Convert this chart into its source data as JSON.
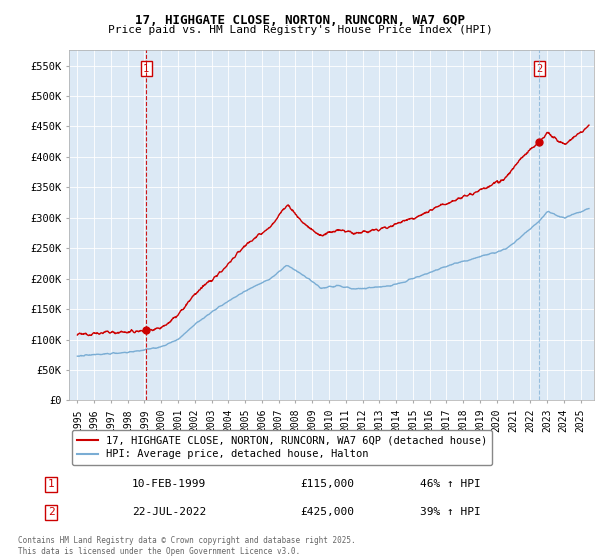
{
  "title1": "17, HIGHGATE CLOSE, NORTON, RUNCORN, WA7 6QP",
  "title2": "Price paid vs. HM Land Registry's House Price Index (HPI)",
  "ylabel_ticks": [
    "£0",
    "£50K",
    "£100K",
    "£150K",
    "£200K",
    "£250K",
    "£300K",
    "£350K",
    "£400K",
    "£450K",
    "£500K",
    "£550K"
  ],
  "ytick_vals": [
    0,
    50000,
    100000,
    150000,
    200000,
    250000,
    300000,
    350000,
    400000,
    450000,
    500000,
    550000
  ],
  "ylim": [
    0,
    575000
  ],
  "xlim_start": 1994.5,
  "xlim_end": 2025.8,
  "legend_line1": "17, HIGHGATE CLOSE, NORTON, RUNCORN, WA7 6QP (detached house)",
  "legend_line2": "HPI: Average price, detached house, Halton",
  "label1_num": "1",
  "label1_date": "10-FEB-1999",
  "label1_price": "£115,000",
  "label1_hpi": "46% ↑ HPI",
  "label2_num": "2",
  "label2_date": "22-JUL-2022",
  "label2_price": "£425,000",
  "label2_hpi": "39% ↑ HPI",
  "copyright": "Contains HM Land Registry data © Crown copyright and database right 2025.\nThis data is licensed under the Open Government Licence v3.0.",
  "sale1_x": 1999.11,
  "sale1_y": 115000,
  "sale2_x": 2022.55,
  "sale2_y": 425000,
  "red_color": "#cc0000",
  "blue_color": "#7aadd4",
  "vline1_color": "#cc0000",
  "vline2_color": "#7aadd4",
  "background_color": "#ffffff",
  "plot_bg_color": "#dce9f5",
  "grid_color": "#ffffff"
}
